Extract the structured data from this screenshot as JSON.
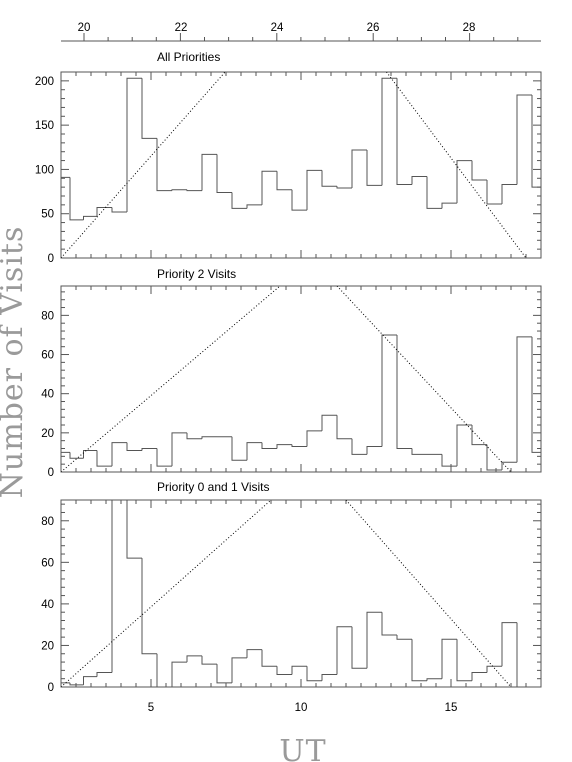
{
  "figure": {
    "ylabel": "Number of Visits",
    "xlabel": "UT",
    "top_axis_ticks": [
      "20",
      "22",
      "24",
      "26",
      "28"
    ],
    "bottom_axis_ticks": [
      "5",
      "10",
      "15"
    ]
  },
  "chart_data": [
    {
      "type": "bar",
      "title": "All Priorities",
      "xlabel": "UT",
      "ylabel": "Number of Visits",
      "xlim": [
        2,
        18
      ],
      "ylim": [
        0,
        210
      ],
      "yticks": [
        0,
        50,
        100,
        150,
        200
      ],
      "bin_edges": [
        2.0,
        2.3,
        2.75,
        3.2,
        3.7,
        4.2,
        4.7,
        5.2,
        5.7,
        6.2,
        6.7,
        7.2,
        7.7,
        8.2,
        8.7,
        9.2,
        9.7,
        10.2,
        10.7,
        11.2,
        11.7,
        12.2,
        12.7,
        13.2,
        13.7,
        14.2,
        14.7,
        15.2,
        15.7,
        16.2,
        16.7,
        17.2,
        17.7,
        18.0
      ],
      "values": [
        91,
        43,
        47,
        57,
        52,
        203,
        135,
        76,
        77,
        76,
        117,
        74,
        56,
        60,
        98,
        77,
        54,
        99,
        81,
        79,
        122,
        82,
        203,
        83,
        92,
        56,
        62,
        110,
        88,
        61,
        83,
        184,
        80
      ],
      "guide_lines": [
        {
          "x": [
            2.0,
            7.6
          ],
          "y": [
            0,
            215
          ]
        },
        {
          "x": [
            12.85,
            17.5
          ],
          "y": [
            210,
            0
          ]
        }
      ]
    },
    {
      "type": "bar",
      "title": "Priority 2 Visits",
      "xlabel": "UT",
      "ylabel": "Number of Visits",
      "xlim": [
        2,
        18
      ],
      "ylim": [
        0,
        95
      ],
      "yticks": [
        0,
        20,
        40,
        60,
        80
      ],
      "bin_edges": [
        2.0,
        2.3,
        2.75,
        3.2,
        3.7,
        4.2,
        4.7,
        5.2,
        5.7,
        6.2,
        6.7,
        7.2,
        7.7,
        8.2,
        8.7,
        9.2,
        9.7,
        10.2,
        10.7,
        11.2,
        11.7,
        12.2,
        12.7,
        13.2,
        13.7,
        14.2,
        14.7,
        15.2,
        15.7,
        16.2,
        16.7,
        17.2,
        17.7,
        18.0
      ],
      "values": [
        10,
        7,
        11,
        3,
        15,
        11,
        12,
        3,
        20,
        17,
        18,
        18,
        6,
        15,
        12,
        14,
        13,
        21,
        29,
        17,
        9,
        13,
        70,
        12,
        9,
        9,
        3,
        24,
        14,
        1,
        5,
        69,
        10
      ],
      "guide_lines": [
        {
          "x": [
            2.0,
            9.3
          ],
          "y": [
            0,
            95
          ]
        },
        {
          "x": [
            11.2,
            17.0
          ],
          "y": [
            95,
            0
          ]
        }
      ]
    },
    {
      "type": "bar",
      "title": "Priority 0 and 1 Visits",
      "xlabel": "UT",
      "ylabel": "Number of Visits",
      "xlim": [
        2,
        18
      ],
      "ylim": [
        0,
        90
      ],
      "yticks": [
        0,
        20,
        40,
        60,
        80
      ],
      "xticks": [
        5,
        10,
        15
      ],
      "bin_edges": [
        2.0,
        2.3,
        2.75,
        3.2,
        3.7,
        4.2,
        4.7,
        5.2,
        5.7,
        6.2,
        6.7,
        7.2,
        7.7,
        8.2,
        8.7,
        9.2,
        9.7,
        10.2,
        10.7,
        11.2,
        11.7,
        12.2,
        12.7,
        13.2,
        13.7,
        14.2,
        14.7,
        15.2,
        15.7,
        16.2,
        16.7,
        17.2,
        17.7,
        18.0
      ],
      "values": [
        2,
        1,
        5,
        7,
        90,
        62,
        16,
        0,
        12,
        15,
        11,
        2,
        14,
        18,
        10,
        6,
        10,
        3,
        6,
        29,
        9,
        36,
        25,
        23,
        3,
        4,
        23,
        3,
        7,
        10,
        31,
        0,
        0
      ],
      "guide_lines": [
        {
          "x": [
            2.0,
            9.0
          ],
          "y": [
            0,
            90
          ]
        },
        {
          "x": [
            11.5,
            17.0
          ],
          "y": [
            90,
            0
          ]
        }
      ]
    }
  ]
}
